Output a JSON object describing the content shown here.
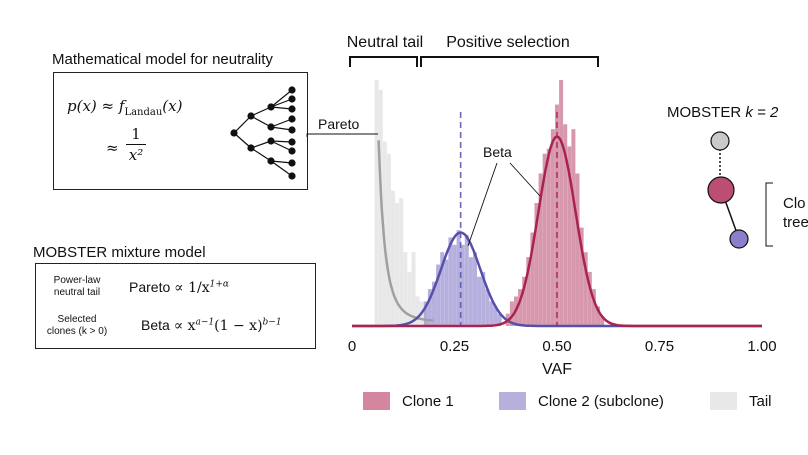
{
  "left": {
    "neutrality_title": "Mathematical model for neutrality",
    "formula_line1_lhs": "p(x) ≈ ",
    "formula_line1_f": "f",
    "formula_line1_sub": "Landau",
    "formula_line1_arg": "(x)",
    "formula_line2_approx": "≈",
    "formula_line2_num": "1",
    "formula_line2_den": "x²",
    "mixture_title": "MOBSTER mixture model",
    "rows": [
      {
        "label_line1": "Power-law",
        "label_line2": "neutral tail",
        "name": "Pareto",
        "expr": "∝ 1/x",
        "exp": "1+α"
      },
      {
        "label_line1": "Selected",
        "label_line2": "clones (k > 0)",
        "name": "Beta",
        "expr": "∝ x",
        "exp": "a−1",
        "expr2": "(1 − x)",
        "exp2": "b−1"
      }
    ]
  },
  "chart_labels": {
    "neutral_tail": "Neutral tail",
    "positive_selection": "Positive selection",
    "pareto": "Pareto",
    "beta": "Beta"
  },
  "right": {
    "mobster_title": "MOBSTER ",
    "mobster_k": "k = 2",
    "clone_tree_line1": "Clo",
    "clone_tree_line2": "tree"
  },
  "legend": [
    {
      "label": "Clone 1",
      "color": "#d4869f"
    },
    {
      "label": "Clone 2 (subclone)",
      "color": "#b7b0dd"
    },
    {
      "label": "Tail",
      "color": "#e8e8e8"
    }
  ],
  "colors": {
    "clone1_line": "#a8244f",
    "clone2_line": "#5550a8",
    "tail_line": "#a0a0a0",
    "clone1_bar": "#c8708f",
    "clone2_bar": "#9d96d3",
    "tail_bar": "#e6e6e6"
  },
  "chart_data": {
    "type": "histogram",
    "xlabel": "VAF",
    "xlim": [
      0,
      1
    ],
    "xticks": [
      0,
      0.25,
      0.5,
      0.75,
      1.0
    ],
    "xtick_labels": [
      "0",
      "0.25",
      "0.50",
      "0.75",
      "1.00"
    ],
    "series": [
      {
        "name": "Tail",
        "component": "Pareto",
        "color": "#e6e6e6",
        "bins_x": [
          0.06,
          0.07,
          0.08,
          0.09,
          0.1,
          0.11,
          0.12,
          0.13,
          0.14,
          0.15,
          0.16,
          0.17,
          0.18
        ],
        "bins_y": [
          1.0,
          0.96,
          0.75,
          0.7,
          0.55,
          0.5,
          0.52,
          0.3,
          0.22,
          0.3,
          0.12,
          0.1,
          0.08
        ]
      },
      {
        "name": "Clone 2 (subclone)",
        "component": "Beta",
        "color": "#9d96d3",
        "mean": 0.265,
        "bins_x": [
          0.18,
          0.19,
          0.2,
          0.21,
          0.22,
          0.23,
          0.24,
          0.25,
          0.26,
          0.27,
          0.28,
          0.29,
          0.3,
          0.31,
          0.32,
          0.33,
          0.34,
          0.35,
          0.36
        ],
        "bins_y": [
          0.1,
          0.15,
          0.18,
          0.25,
          0.3,
          0.27,
          0.36,
          0.33,
          0.39,
          0.33,
          0.37,
          0.28,
          0.3,
          0.2,
          0.22,
          0.15,
          0.1,
          0.08,
          0.05
        ]
      },
      {
        "name": "Clone 1",
        "component": "Beta",
        "color": "#c8708f",
        "mean": 0.5,
        "bins_x": [
          0.38,
          0.39,
          0.4,
          0.41,
          0.42,
          0.43,
          0.44,
          0.45,
          0.46,
          0.47,
          0.48,
          0.49,
          0.5,
          0.51,
          0.52,
          0.53,
          0.54,
          0.55,
          0.56,
          0.57,
          0.58,
          0.59,
          0.6,
          0.61
        ],
        "bins_y": [
          0.05,
          0.1,
          0.12,
          0.15,
          0.2,
          0.28,
          0.38,
          0.5,
          0.62,
          0.7,
          0.72,
          0.8,
          0.9,
          1.0,
          0.82,
          0.73,
          0.8,
          0.62,
          0.4,
          0.3,
          0.22,
          0.15,
          0.08,
          0.04
        ]
      }
    ],
    "curves": [
      {
        "name": "Pareto",
        "color": "#a0a0a0",
        "start": 0.065
      },
      {
        "name": "Beta clone 2",
        "color": "#5550a8",
        "mean": 0.265,
        "sd": 0.048,
        "peak": 0.38
      },
      {
        "name": "Beta clone 1",
        "color": "#a8244f",
        "mean": 0.5,
        "sd": 0.045,
        "peak": 0.77
      }
    ],
    "annotations": [
      "Neutral tail",
      "Positive selection",
      "Pareto",
      "Beta"
    ]
  }
}
